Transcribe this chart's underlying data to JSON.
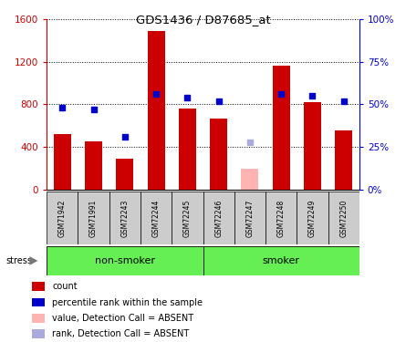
{
  "title": "GDS1436 / D87685_at",
  "samples": [
    "GSM71942",
    "GSM71991",
    "GSM72243",
    "GSM72244",
    "GSM72245",
    "GSM72246",
    "GSM72247",
    "GSM72248",
    "GSM72249",
    "GSM72250"
  ],
  "counts": [
    520,
    450,
    290,
    1490,
    760,
    670,
    null,
    1160,
    820,
    560
  ],
  "counts_absent": [
    null,
    null,
    null,
    null,
    null,
    null,
    200,
    null,
    null,
    null
  ],
  "ranks": [
    48,
    47,
    31,
    56,
    54,
    52,
    null,
    56,
    55,
    52
  ],
  "ranks_absent": [
    null,
    null,
    null,
    null,
    null,
    null,
    28,
    null,
    null,
    null
  ],
  "count_color": "#cc0000",
  "count_absent_color": "#ffb3b3",
  "rank_color": "#0000cc",
  "rank_absent_color": "#aaaadd",
  "non_smoker_indices": [
    0,
    1,
    2,
    3,
    4
  ],
  "smoker_indices": [
    5,
    6,
    7,
    8,
    9
  ],
  "group_bg_color": "#66ee55",
  "ylim_left": [
    0,
    1600
  ],
  "ylim_right": [
    0,
    100
  ],
  "yticks_left": [
    0,
    400,
    800,
    1200,
    1600
  ],
  "ytick_labels_left": [
    "0",
    "400",
    "800",
    "1200",
    "1600"
  ],
  "yticks_right": [
    0,
    25,
    50,
    75,
    100
  ],
  "ytick_labels_right": [
    "0%",
    "25%",
    "50%",
    "75%",
    "100%"
  ],
  "legend_items": [
    {
      "label": "count",
      "color": "#cc0000"
    },
    {
      "label": "percentile rank within the sample",
      "color": "#0000cc"
    },
    {
      "label": "value, Detection Call = ABSENT",
      "color": "#ffb3b3"
    },
    {
      "label": "rank, Detection Call = ABSENT",
      "color": "#aaaadd"
    }
  ]
}
